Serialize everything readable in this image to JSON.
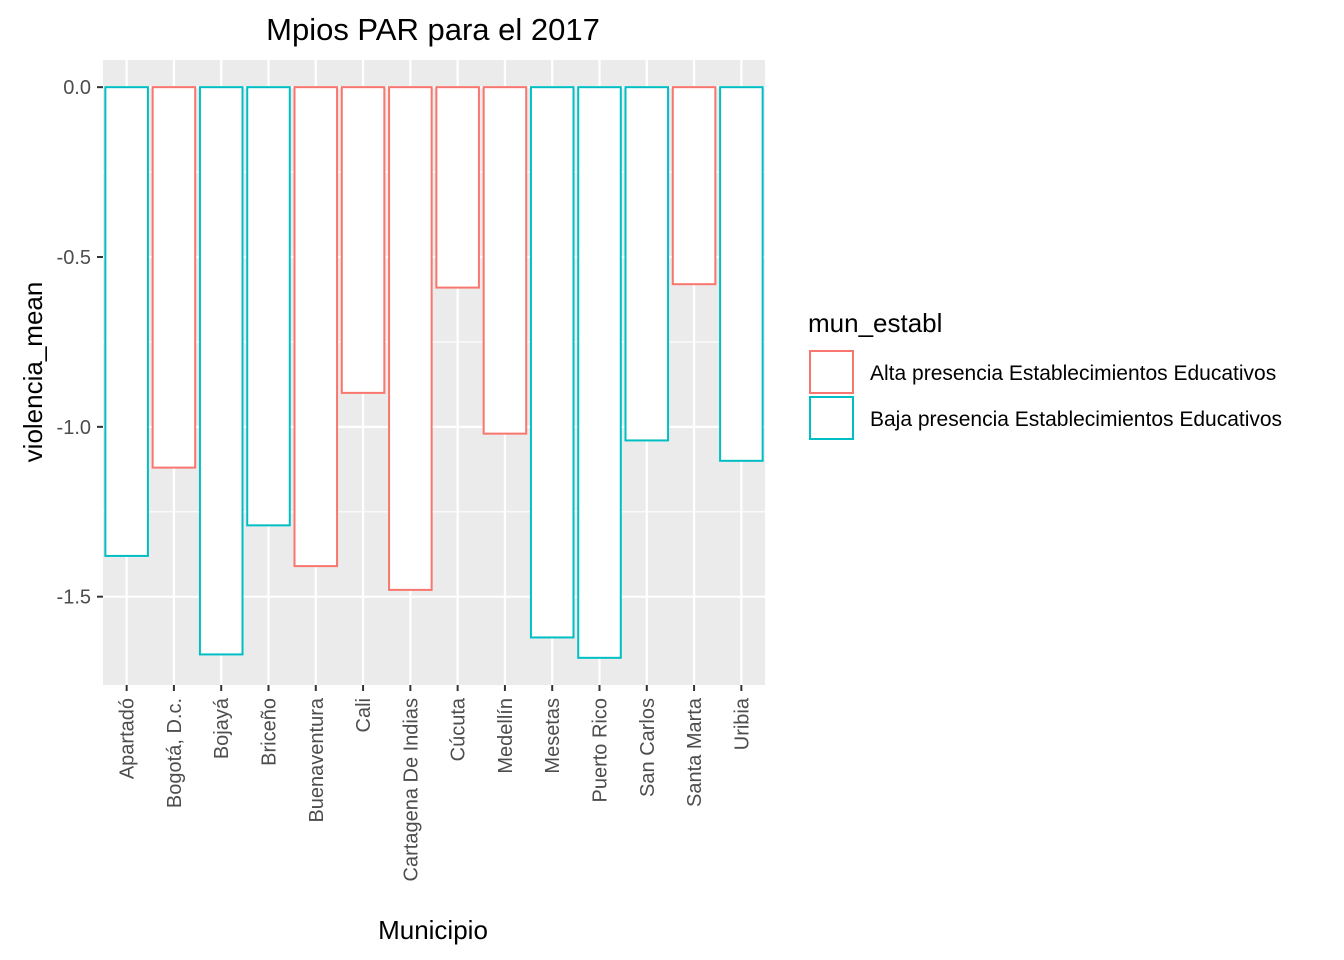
{
  "chart_data": {
    "type": "bar",
    "title": "Mpios PAR para el 2017",
    "xlabel": "Municipio",
    "ylabel": "violencia_mean",
    "categories": [
      "Apartadó",
      "Bogotá, D.c.",
      "Bojayá",
      "Briceño",
      "Buenaventura",
      "Cali",
      "Cartagena De Indias",
      "Cúcuta",
      "Medellín",
      "Mesetas",
      "Puerto Rico",
      "San Carlos",
      "Santa Marta",
      "Uribia"
    ],
    "values": [
      -1.38,
      -1.12,
      -1.67,
      -1.29,
      -1.41,
      -0.9,
      -1.48,
      -0.59,
      -1.02,
      -1.62,
      -1.68,
      -1.04,
      -0.58,
      -1.1
    ],
    "groups": [
      "Baja presencia Establecimientos Educativos",
      "Alta presencia Establecimientos Educativos",
      "Baja presencia Establecimientos Educativos",
      "Baja presencia Establecimientos Educativos",
      "Alta presencia Establecimientos Educativos",
      "Alta presencia Establecimientos Educativos",
      "Alta presencia Establecimientos Educativos",
      "Alta presencia Establecimientos Educativos",
      "Alta presencia Establecimientos Educativos",
      "Baja presencia Establecimientos Educativos",
      "Baja presencia Establecimientos Educativos",
      "Baja presencia Establecimientos Educativos",
      "Alta presencia Establecimientos Educativos",
      "Baja presencia Establecimientos Educativos"
    ],
    "ylim": [
      -1.76,
      0.08
    ],
    "yticks": [
      0.0,
      -0.5,
      -1.0,
      -1.5
    ],
    "ytick_labels": [
      "0.0",
      "-0.5",
      "-1.0",
      "-1.5"
    ],
    "grid": true,
    "legend": {
      "title": "mun_establ",
      "position": "right",
      "entries": [
        {
          "label": "Alta presencia Establecimientos Educativos",
          "color": "#F8766D"
        },
        {
          "label": "Baja presencia Establecimientos Educativos",
          "color": "#00BFC4"
        }
      ]
    },
    "colors": {
      "panel": "#EBEBEB",
      "grid_major": "#FFFFFF",
      "tick_text": "#4D4D4D"
    }
  }
}
